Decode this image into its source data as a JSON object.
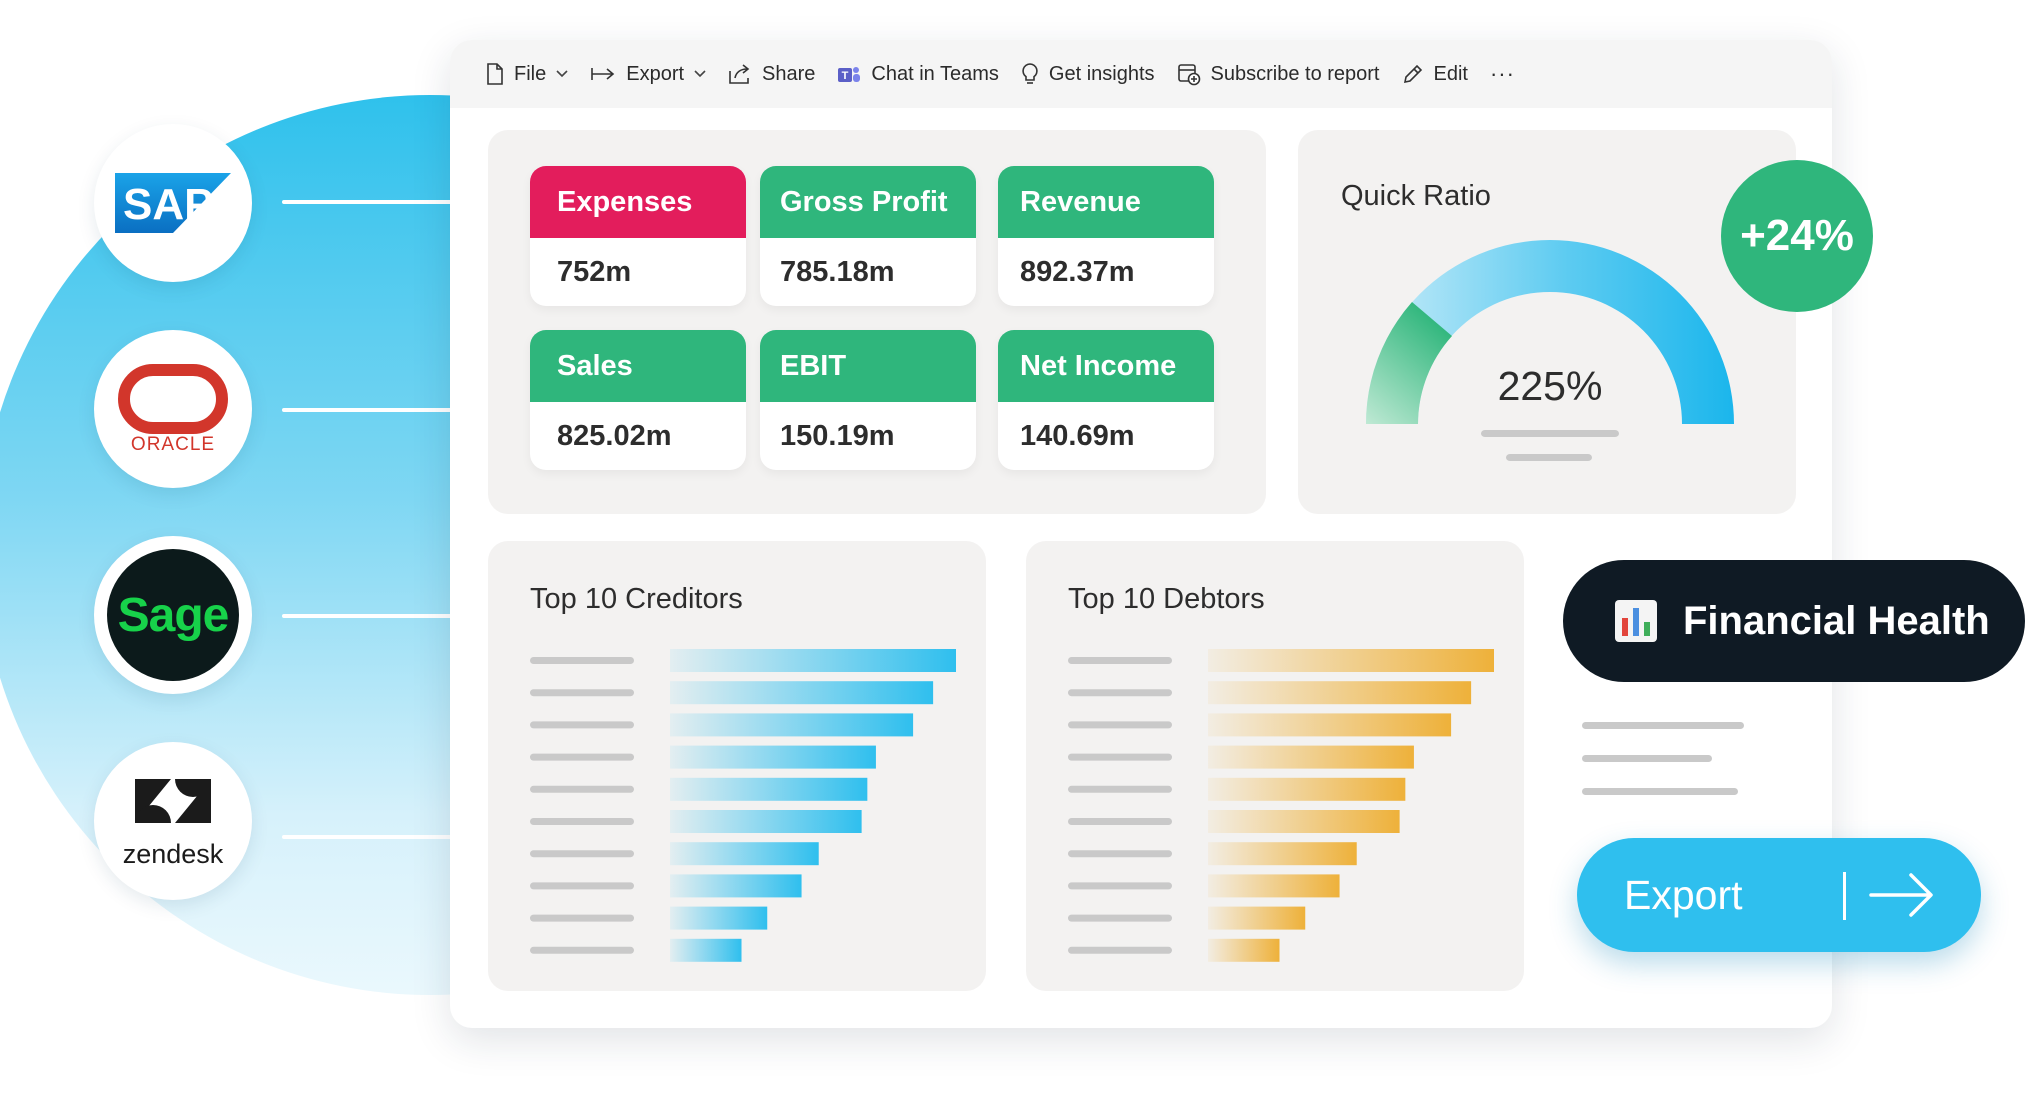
{
  "toolbar": {
    "file": "File",
    "export": "Export",
    "share": "Share",
    "chat": "Chat in Teams",
    "insights": "Get insights",
    "subscribe": "Subscribe to report",
    "edit": "Edit",
    "more": "···"
  },
  "integrations": {
    "sap": "SAP",
    "oracle": "ORACLE",
    "sage": "Sage",
    "zendesk": "zendesk"
  },
  "kpis": [
    {
      "label": "Expenses",
      "value": "752m",
      "color": "#e31d5c"
    },
    {
      "label": "Gross Profit",
      "value": "785.18m",
      "color": "#2fb67c"
    },
    {
      "label": "Revenue",
      "value": "892.37m",
      "color": "#2fb67c"
    },
    {
      "label": "Sales",
      "value": "825.02m",
      "color": "#2fb67c"
    },
    {
      "label": "EBIT",
      "value": "150.19m",
      "color": "#2fb67c"
    },
    {
      "label": "Net Income",
      "value": "140.69m",
      "color": "#2fb67c"
    }
  ],
  "quick_ratio": {
    "title": "Quick Ratio",
    "value": "225%",
    "change": "+24%"
  },
  "creditors": {
    "title": "Top 10 Creditors",
    "color": "#2fbfee",
    "values": [
      100,
      92,
      85,
      72,
      69,
      67,
      52,
      46,
      34,
      25
    ]
  },
  "debtors": {
    "title": "Top 10 Debtors",
    "color": "#eeb13a",
    "values": [
      100,
      92,
      85,
      72,
      69,
      67,
      52,
      46,
      34,
      25
    ]
  },
  "financial_health": {
    "icon": "bar-chart-icon",
    "label": "Financial Health"
  },
  "export_button": {
    "label": "Export"
  },
  "colors": {
    "accent_blue": "#2fbfee",
    "accent_green": "#2fb67c",
    "accent_red": "#e31d5c",
    "dark": "#0f1a24"
  }
}
